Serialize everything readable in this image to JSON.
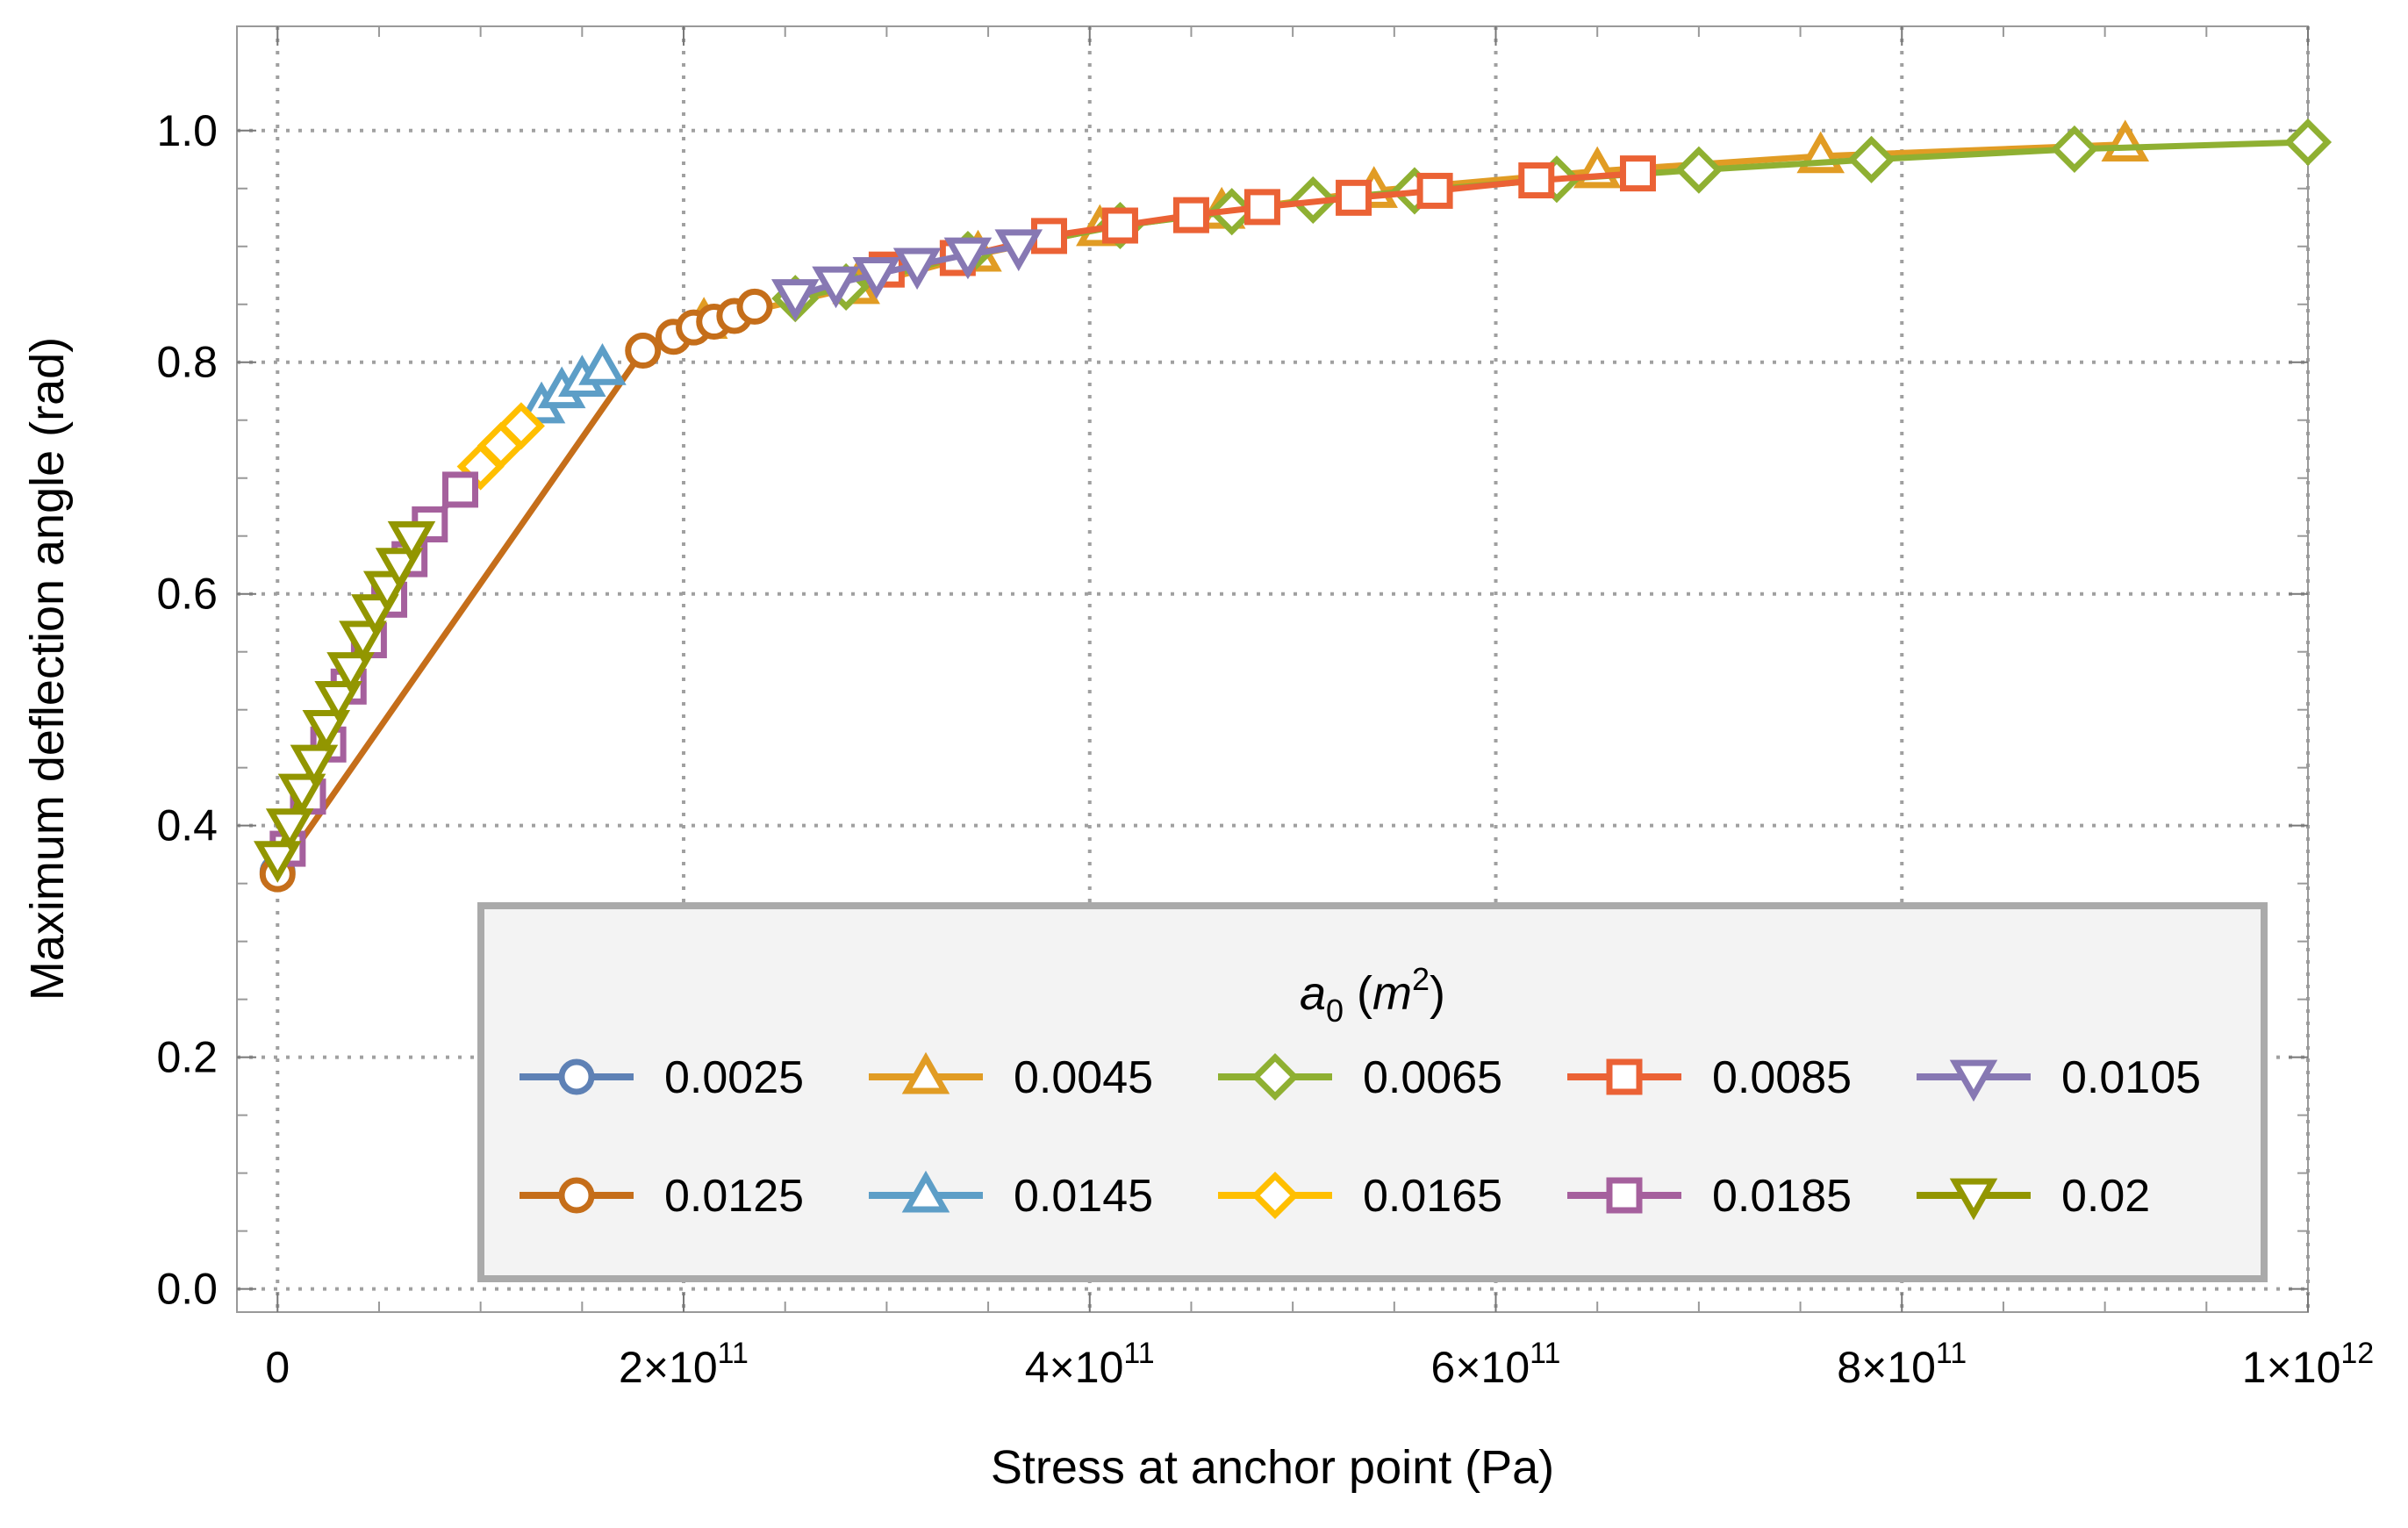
{
  "chart_data": {
    "type": "line",
    "title": "",
    "xlabel": "Stress at anchor point (Pa)",
    "ylabel": "Maximum deflection angle (rad)",
    "xlim": [
      -20000000000.0,
      1000000000000.0
    ],
    "ylim": [
      -0.02,
      1.09
    ],
    "grid": true,
    "x_ticks": [
      {
        "value": 0,
        "label": "0"
      },
      {
        "value": 200000000000.0,
        "label": "2×10",
        "exp": "11"
      },
      {
        "value": 400000000000.0,
        "label": "4×10",
        "exp": "11"
      },
      {
        "value": 600000000000.0,
        "label": "6×10",
        "exp": "11"
      },
      {
        "value": 800000000000.0,
        "label": "8×10",
        "exp": "11"
      },
      {
        "value": 1000000000000.0,
        "label": "1×10",
        "exp": "12"
      }
    ],
    "y_ticks": [
      {
        "value": 0.0,
        "label": "0.0"
      },
      {
        "value": 0.2,
        "label": "0.2"
      },
      {
        "value": 0.4,
        "label": "0.4"
      },
      {
        "value": 0.6,
        "label": "0.6"
      },
      {
        "value": 0.8,
        "label": "0.8"
      },
      {
        "value": 1.0,
        "label": "1.0"
      }
    ],
    "legend": {
      "title_base": "a",
      "title_sub": "0",
      "title_unit": "m",
      "title_unit_exp": "2",
      "placement": "bottom-right"
    },
    "series": [
      {
        "name": "0.0025",
        "color": "#5E81B5",
        "marker": "circle",
        "x": [
          0
        ],
        "y": [
          0.36
        ]
      },
      {
        "name": "0.0045",
        "color": "#E19C24",
        "marker": "triangle-up",
        "x": [
          210000000000.0,
          285000000000.0,
          345000000000.0,
          405000000000.0,
          465000000000.0,
          540000000000.0,
          650000000000.0,
          760000000000.0,
          910000000000.0
        ],
        "y": [
          0.835,
          0.865,
          0.893,
          0.915,
          0.93,
          0.948,
          0.965,
          0.978,
          0.988
        ]
      },
      {
        "name": "0.0065",
        "color": "#8FB032",
        "marker": "diamond",
        "x": [
          255000000000.0,
          280000000000.0,
          340000000000.0,
          415000000000.0,
          470000000000.0,
          510000000000.0,
          560000000000.0,
          630000000000.0,
          700000000000.0,
          785000000000.0,
          885000000000.0,
          1000000000000.0
        ],
        "y": [
          0.855,
          0.865,
          0.893,
          0.918,
          0.93,
          0.94,
          0.948,
          0.958,
          0.966,
          0.975,
          0.984,
          0.99
        ]
      },
      {
        "name": "0.0085",
        "color": "#EB6235",
        "marker": "square",
        "x": [
          300000000000.0,
          335000000000.0,
          380000000000.0,
          415000000000.0,
          450000000000.0,
          485000000000.0,
          530000000000.0,
          570000000000.0,
          620000000000.0,
          670000000000.0
        ],
        "y": [
          0.88,
          0.89,
          0.909,
          0.918,
          0.927,
          0.934,
          0.942,
          0.948,
          0.957,
          0.963
        ]
      },
      {
        "name": "0.0105",
        "color": "#8778B3",
        "marker": "triangle-down",
        "x": [
          255000000000.0,
          275000000000.0,
          295000000000.0,
          315000000000.0,
          340000000000.0,
          365000000000.0
        ],
        "y": [
          0.857,
          0.868,
          0.876,
          0.884,
          0.893,
          0.9
        ]
      },
      {
        "name": "0.0125",
        "color": "#C56E1A",
        "marker": "circle",
        "x": [
          0,
          180000000000.0,
          195000000000.0,
          205000000000.0,
          215000000000.0,
          225000000000.0,
          235000000000.0
        ],
        "y": [
          0.358,
          0.81,
          0.822,
          0.83,
          0.835,
          0.84,
          0.848
        ]
      },
      {
        "name": "0.0145",
        "color": "#5D9EC7",
        "marker": "triangle-up",
        "x": [
          130000000000.0,
          140000000000.0,
          150000000000.0,
          160000000000.0
        ],
        "y": [
          0.762,
          0.775,
          0.785,
          0.795
        ]
      },
      {
        "name": "0.0165",
        "color": "#FFBF00",
        "marker": "diamond",
        "x": [
          100000000000.0,
          110000000000.0,
          120000000000.0
        ],
        "y": [
          0.71,
          0.728,
          0.745
        ]
      },
      {
        "name": "0.0185",
        "color": "#A5609D",
        "marker": "square",
        "x": [
          5000000000.0,
          15000000000.0,
          25000000000.0,
          35000000000.0,
          45000000000.0,
          55000000000.0,
          65000000000.0,
          75000000000.0,
          90000000000.0
        ],
        "y": [
          0.38,
          0.425,
          0.47,
          0.52,
          0.56,
          0.595,
          0.63,
          0.66,
          0.69
        ]
      },
      {
        "name": "0.02",
        "color": "#929600",
        "marker": "triangle-down",
        "x": [
          0,
          6000000000.0,
          12000000000.0,
          18000000000.0,
          24000000000.0,
          30000000000.0,
          36000000000.0,
          42000000000.0,
          48000000000.0,
          54000000000.0,
          60000000000.0,
          66000000000.0
        ],
        "y": [
          0.372,
          0.4,
          0.43,
          0.455,
          0.485,
          0.51,
          0.535,
          0.562,
          0.585,
          0.605,
          0.625,
          0.648
        ]
      }
    ]
  }
}
